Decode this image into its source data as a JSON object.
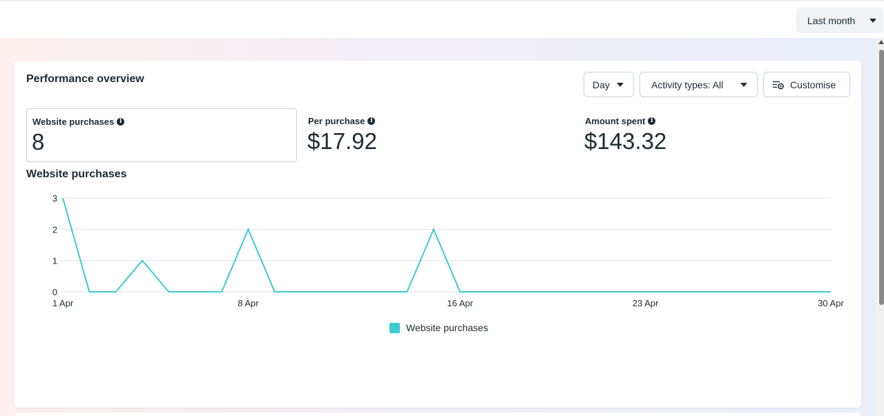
{
  "topbar": {
    "date_range": "Last month"
  },
  "card": {
    "title": "Performance overview",
    "controls": {
      "granularity": "Day",
      "activity_types": "Activity types: All",
      "customise": "Customise"
    }
  },
  "metrics": [
    {
      "label": "Website purchases",
      "value": "8"
    },
    {
      "label": "Per purchase",
      "value": "$17.92"
    },
    {
      "label": "Amount spent",
      "value": "$143.32"
    }
  ],
  "chart": {
    "title": "Website purchases",
    "legend": "Website purchases"
  },
  "colors": {
    "series": "#3ecbcf",
    "grid": "#dfe3e8",
    "text": "#1c2b33"
  },
  "icons": [
    "chevron-down-icon",
    "info-icon",
    "customise-icon"
  ],
  "chart_data": {
    "type": "line",
    "x": [
      "1 Apr",
      "2 Apr",
      "3 Apr",
      "4 Apr",
      "5 Apr",
      "6 Apr",
      "7 Apr",
      "8 Apr",
      "9 Apr",
      "10 Apr",
      "11 Apr",
      "12 Apr",
      "13 Apr",
      "14 Apr",
      "15 Apr",
      "16 Apr",
      "17 Apr",
      "18 Apr",
      "19 Apr",
      "20 Apr",
      "21 Apr",
      "22 Apr",
      "23 Apr",
      "24 Apr",
      "25 Apr",
      "26 Apr",
      "27 Apr",
      "28 Apr",
      "29 Apr",
      "30 Apr"
    ],
    "x_tick_labels": [
      "1 Apr",
      "8 Apr",
      "16 Apr",
      "23 Apr",
      "30 Apr"
    ],
    "series": [
      {
        "name": "Website purchases",
        "values": [
          3,
          0,
          0,
          1,
          0,
          0,
          0,
          2,
          0,
          0,
          0,
          0,
          0,
          0,
          2,
          0,
          0,
          0,
          0,
          0,
          0,
          0,
          0,
          0,
          0,
          0,
          0,
          0,
          0,
          0
        ]
      }
    ],
    "y_ticks": [
      0,
      1,
      2,
      3
    ],
    "ylim": [
      0,
      3
    ],
    "grid": true,
    "legend_position": "bottom-center"
  }
}
